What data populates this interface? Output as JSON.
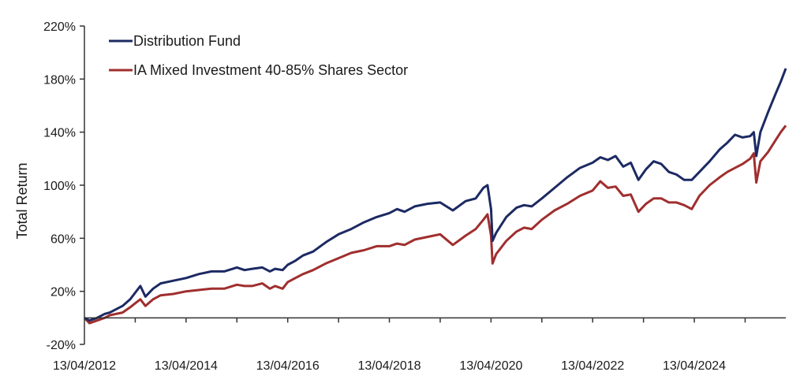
{
  "chart_data": {
    "type": "line",
    "title": "",
    "xlabel": "",
    "ylabel": "Total Return",
    "ylim": [
      -20,
      220
    ],
    "yticks": [
      "-20%",
      "20%",
      "60%",
      "100%",
      "140%",
      "180%",
      "220%"
    ],
    "ytick_values": [
      -20,
      20,
      60,
      100,
      140,
      180,
      220
    ],
    "xlim_years_from_start": [
      0,
      13.8
    ],
    "xtick_labels": [
      "13/04/2012",
      "13/04/2014",
      "13/04/2016",
      "13/04/2018",
      "13/04/2020",
      "13/04/2022",
      "13/04/2024"
    ],
    "xtick_label_years": [
      0,
      2,
      4,
      6,
      8,
      10,
      12
    ],
    "minor_tick_years": [
      1,
      2,
      3,
      4,
      5,
      6,
      7,
      8,
      9,
      10,
      11,
      12,
      13
    ],
    "grid": false,
    "legend_position": "top-left",
    "series": [
      {
        "name": "Distribution Fund",
        "color": "#1c2a63",
        "x": [
          0,
          0.1,
          0.25,
          0.4,
          0.5,
          0.75,
          0.9,
          1.0,
          1.1,
          1.2,
          1.35,
          1.5,
          1.75,
          2.0,
          2.25,
          2.5,
          2.75,
          3.0,
          3.15,
          3.3,
          3.5,
          3.65,
          3.75,
          3.9,
          4.0,
          4.15,
          4.3,
          4.5,
          4.75,
          5.0,
          5.25,
          5.5,
          5.75,
          6.0,
          6.15,
          6.3,
          6.5,
          6.75,
          7.0,
          7.25,
          7.5,
          7.7,
          7.85,
          7.93,
          8.0,
          8.03,
          8.1,
          8.3,
          8.5,
          8.65,
          8.8,
          9.0,
          9.25,
          9.5,
          9.75,
          10.0,
          10.15,
          10.3,
          10.45,
          10.6,
          10.75,
          10.9,
          11.05,
          11.2,
          11.35,
          11.5,
          11.65,
          11.8,
          11.95,
          12.1,
          12.3,
          12.5,
          12.65,
          12.8,
          12.95,
          13.1,
          13.17,
          13.22,
          13.3,
          13.45,
          13.6,
          13.7,
          13.8
        ],
        "values": [
          0,
          -2,
          0,
          3,
          4,
          9,
          14,
          19,
          24,
          16,
          22,
          26,
          28,
          30,
          33,
          35,
          35,
          38,
          36,
          37,
          38,
          35,
          37,
          36,
          40,
          43,
          47,
          50,
          57,
          63,
          67,
          72,
          76,
          79,
          82,
          80,
          84,
          86,
          87,
          81,
          88,
          90,
          98,
          100,
          82,
          58,
          64,
          76,
          83,
          85,
          84,
          90,
          98,
          106,
          113,
          117,
          121,
          119,
          122,
          114,
          117,
          104,
          112,
          118,
          116,
          110,
          108,
          104,
          104,
          110,
          118,
          127,
          132,
          138,
          136,
          137,
          140,
          122,
          140,
          155,
          169,
          178,
          188
        ]
      },
      {
        "name": "IA Mixed Investment 40-85% Shares Sector",
        "color": "#a02e2e",
        "x": [
          0,
          0.1,
          0.25,
          0.4,
          0.5,
          0.75,
          0.9,
          1.0,
          1.1,
          1.2,
          1.35,
          1.5,
          1.75,
          2.0,
          2.25,
          2.5,
          2.75,
          3.0,
          3.15,
          3.3,
          3.5,
          3.65,
          3.75,
          3.9,
          4.0,
          4.15,
          4.3,
          4.5,
          4.75,
          5.0,
          5.25,
          5.5,
          5.75,
          6.0,
          6.15,
          6.3,
          6.5,
          6.75,
          7.0,
          7.25,
          7.5,
          7.7,
          7.85,
          7.93,
          8.0,
          8.03,
          8.1,
          8.3,
          8.5,
          8.65,
          8.8,
          9.0,
          9.25,
          9.5,
          9.75,
          10.0,
          10.15,
          10.3,
          10.45,
          10.6,
          10.75,
          10.9,
          11.05,
          11.2,
          11.35,
          11.5,
          11.65,
          11.8,
          11.95,
          12.1,
          12.3,
          12.5,
          12.65,
          12.8,
          12.95,
          13.1,
          13.17,
          13.22,
          13.3,
          13.45,
          13.6,
          13.7,
          13.8
        ],
        "values": [
          0,
          -4,
          -2,
          0,
          2,
          4,
          8,
          11,
          14,
          9,
          14,
          17,
          18,
          20,
          21,
          22,
          22,
          25,
          24,
          24,
          26,
          22,
          24,
          22,
          27,
          30,
          33,
          36,
          41,
          45,
          49,
          51,
          54,
          54,
          56,
          55,
          59,
          61,
          63,
          55,
          62,
          67,
          74,
          78,
          62,
          41,
          48,
          58,
          65,
          68,
          67,
          74,
          81,
          86,
          92,
          96,
          103,
          98,
          99,
          92,
          93,
          80,
          86,
          90,
          90,
          87,
          87,
          85,
          82,
          92,
          100,
          106,
          110,
          113,
          116,
          120,
          124,
          102,
          118,
          125,
          134,
          140,
          145
        ]
      }
    ]
  }
}
